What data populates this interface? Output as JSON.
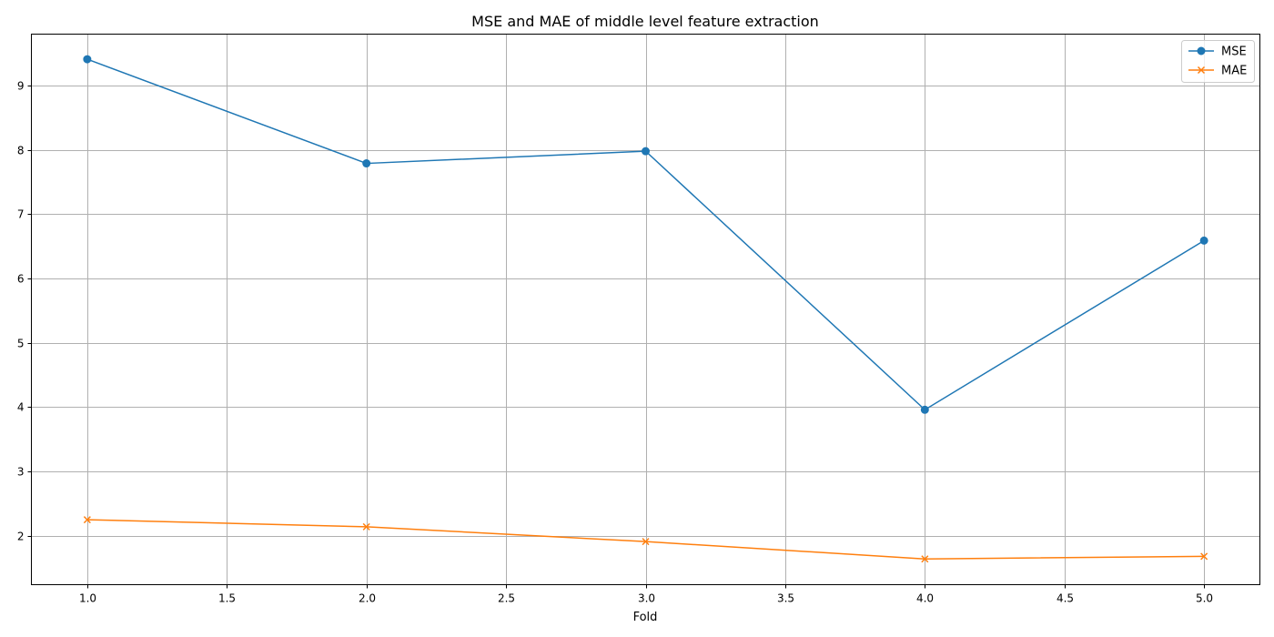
{
  "chart_data": {
    "type": "line",
    "title": "MSE and MAE of middle level feature extraction",
    "xlabel": "Fold",
    "ylabel": "",
    "x": [
      1,
      2,
      3,
      4,
      5
    ],
    "xlim": [
      0.8,
      5.2
    ],
    "ylim": [
      1.24,
      9.8
    ],
    "xticks": [
      1.0,
      1.5,
      2.0,
      2.5,
      3.0,
      3.5,
      4.0,
      4.5,
      5.0
    ],
    "xtick_labels": [
      "1.0",
      "1.5",
      "2.0",
      "2.5",
      "3.0",
      "3.5",
      "4.0",
      "4.5",
      "5.0"
    ],
    "yticks": [
      2,
      3,
      4,
      5,
      6,
      7,
      8,
      9
    ],
    "ytick_labels": [
      "2",
      "3",
      "4",
      "5",
      "6",
      "7",
      "8",
      "9"
    ],
    "grid": true,
    "legend_position": "top-right",
    "series": [
      {
        "name": "MSE",
        "values": [
          9.41,
          7.79,
          7.98,
          3.96,
          6.59
        ],
        "color": "#1f77b4",
        "marker": "circle"
      },
      {
        "name": "MAE",
        "values": [
          2.25,
          2.14,
          1.91,
          1.64,
          1.68
        ],
        "color": "#ff7f0e",
        "marker": "x"
      }
    ]
  }
}
